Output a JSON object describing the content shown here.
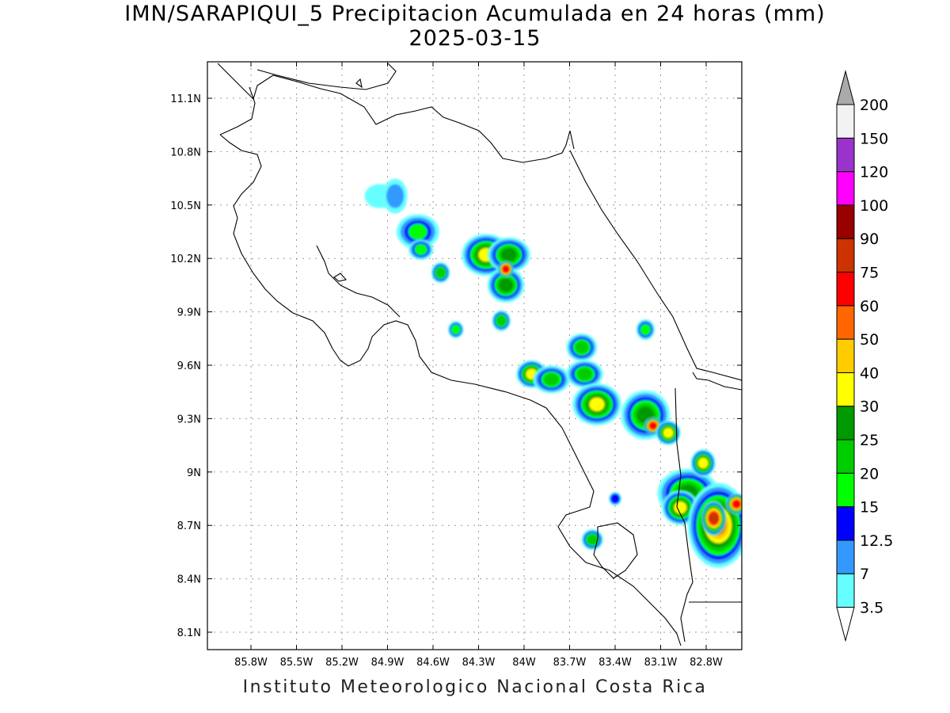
{
  "title_line1": "IMN/SARAPIQUI_5 Precipitacion Acumulada en 24 horas (mm)",
  "title_line2": "2025-03-15",
  "footer": "Instituto Meteorologico Nacional Costa Rica",
  "axes": {
    "lon_labels": [
      "85.8W",
      "85.5W",
      "85.2W",
      "84.9W",
      "84.6W",
      "84.3W",
      "84W",
      "83.7W",
      "83.4W",
      "83.1W",
      "82.8W"
    ],
    "lat_labels": [
      "11.1N",
      "10.8N",
      "10.5N",
      "10.2N",
      "9.9N",
      "9.6N",
      "9.3N",
      "9N",
      "8.7N",
      "8.4N",
      "8.1N"
    ]
  },
  "colorbar": {
    "levels": [
      "3.5",
      "7",
      "12.5",
      "15",
      "20",
      "25",
      "30",
      "40",
      "50",
      "60",
      "75",
      "90",
      "100",
      "120",
      "150",
      "200"
    ],
    "colors": [
      "#66ffff",
      "#3399ff",
      "#0000ff",
      "#00ff00",
      "#00cc00",
      "#009900",
      "#ffff00",
      "#ffcc00",
      "#ff6600",
      "#ff0000",
      "#cc3300",
      "#990000",
      "#ff00ff",
      "#9933cc",
      "#f2f2f2",
      "#aaaaaa"
    ]
  },
  "rain_cells": [
    {
      "lon": -84.95,
      "lat": 10.55,
      "rx": 0.08,
      "ry": 0.05,
      "lvl": 0
    },
    {
      "lon": -84.85,
      "lat": 10.55,
      "rx": 0.06,
      "ry": 0.08,
      "lvl": 1
    },
    {
      "lon": -84.7,
      "lat": 10.35,
      "rx": 0.12,
      "ry": 0.08,
      "lvl": 3
    },
    {
      "lon": -84.68,
      "lat": 10.25,
      "rx": 0.06,
      "ry": 0.04,
      "lvl": 3
    },
    {
      "lon": -84.55,
      "lat": 10.12,
      "rx": 0.04,
      "ry": 0.04,
      "lvl": 4
    },
    {
      "lon": -84.25,
      "lat": 10.22,
      "rx": 0.14,
      "ry": 0.1,
      "lvl": 6
    },
    {
      "lon": -84.1,
      "lat": 10.22,
      "rx": 0.12,
      "ry": 0.08,
      "lvl": 5
    },
    {
      "lon": -84.12,
      "lat": 10.05,
      "rx": 0.1,
      "ry": 0.08,
      "lvl": 5
    },
    {
      "lon": -84.12,
      "lat": 10.14,
      "rx": 0.03,
      "ry": 0.03,
      "lvl": 9
    },
    {
      "lon": -84.15,
      "lat": 9.85,
      "rx": 0.04,
      "ry": 0.04,
      "lvl": 4
    },
    {
      "lon": -84.45,
      "lat": 9.8,
      "rx": 0.03,
      "ry": 0.03,
      "lvl": 3
    },
    {
      "lon": -83.95,
      "lat": 9.55,
      "rx": 0.08,
      "ry": 0.06,
      "lvl": 6
    },
    {
      "lon": -83.82,
      "lat": 9.52,
      "rx": 0.1,
      "ry": 0.06,
      "lvl": 4
    },
    {
      "lon": -83.62,
      "lat": 9.7,
      "rx": 0.08,
      "ry": 0.06,
      "lvl": 4
    },
    {
      "lon": -83.6,
      "lat": 9.55,
      "rx": 0.1,
      "ry": 0.06,
      "lvl": 4
    },
    {
      "lon": -83.52,
      "lat": 9.38,
      "rx": 0.14,
      "ry": 0.1,
      "lvl": 6
    },
    {
      "lon": -83.2,
      "lat": 9.32,
      "rx": 0.14,
      "ry": 0.12,
      "lvl": 5
    },
    {
      "lon": -83.15,
      "lat": 9.26,
      "rx": 0.04,
      "ry": 0.03,
      "lvl": 9
    },
    {
      "lon": -83.05,
      "lat": 9.22,
      "rx": 0.06,
      "ry": 0.05,
      "lvl": 6
    },
    {
      "lon": -83.2,
      "lat": 9.8,
      "rx": 0.04,
      "ry": 0.04,
      "lvl": 3
    },
    {
      "lon": -82.92,
      "lat": 8.88,
      "rx": 0.18,
      "ry": 0.12,
      "lvl": 5
    },
    {
      "lon": -82.97,
      "lat": 8.8,
      "rx": 0.1,
      "ry": 0.08,
      "lvl": 6
    },
    {
      "lon": -82.72,
      "lat": 8.7,
      "rx": 0.18,
      "ry": 0.22,
      "lvl": 8
    },
    {
      "lon": -82.75,
      "lat": 8.74,
      "rx": 0.06,
      "ry": 0.08,
      "lvl": 10
    },
    {
      "lon": -82.6,
      "lat": 8.82,
      "rx": 0.05,
      "ry": 0.04,
      "lvl": 9
    },
    {
      "lon": -83.55,
      "lat": 8.62,
      "rx": 0.05,
      "ry": 0.04,
      "lvl": 4
    },
    {
      "lon": -82.82,
      "lat": 9.05,
      "rx": 0.06,
      "ry": 0.06,
      "lvl": 6
    },
    {
      "lon": -83.4,
      "lat": 8.85,
      "rx": 0.02,
      "ry": 0.02,
      "lvl": 2
    }
  ]
}
